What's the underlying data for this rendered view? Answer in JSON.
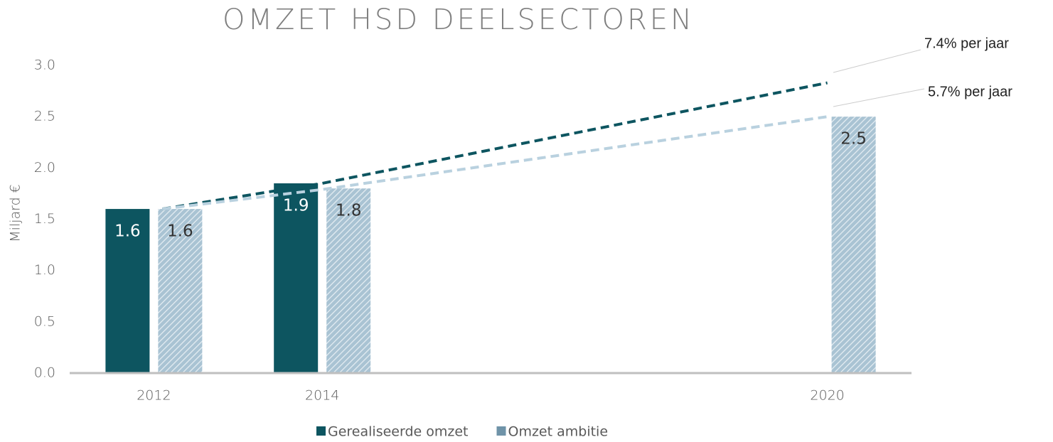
{
  "chart_data": {
    "type": "bar",
    "title": "OMZET HSD DEELSECTOREN",
    "ylabel": "Miljard €",
    "x": [
      2012,
      2014,
      2020
    ],
    "xlim": [
      2011,
      2021
    ],
    "xticks": [
      2012,
      2014,
      2020
    ],
    "ylim": [
      0,
      3
    ],
    "yticks": [
      {
        "value": 0,
        "label": "0.0"
      },
      {
        "value": 0.5,
        "label": "0.5"
      },
      {
        "value": 1,
        "label": "1.0"
      },
      {
        "value": 1.5,
        "label": "1.5"
      },
      {
        "value": 2,
        "label": "2.0"
      },
      {
        "value": 2.5,
        "label": "2.5"
      },
      {
        "value": 3,
        "label": "3.0"
      }
    ],
    "grid": false,
    "legend": "bottom",
    "series": [
      {
        "name": "Gerealiseerde omzet",
        "color": "#0d5560",
        "values": [
          1.6,
          1.85,
          null
        ],
        "value_labels": [
          "1.6",
          "1.9",
          null
        ]
      },
      {
        "name": "Omzet ambitie",
        "color": "#6f93a8",
        "pattern": "hatched",
        "values": [
          1.6,
          1.8,
          2.5
        ]
      }
    ],
    "trend_lines": [
      {
        "name": "7.4% per jaar",
        "color": "#0d5560",
        "x": [
          2012,
          2014,
          2020
        ],
        "values": [
          1.6,
          1.85,
          2.83
        ]
      },
      {
        "name": "5.7% per jaar",
        "color": "#b9d1df",
        "x": [
          2012,
          2014,
          2020
        ],
        "values": [
          1.6,
          1.79,
          2.5
        ]
      }
    ],
    "annotation": "2"
  }
}
